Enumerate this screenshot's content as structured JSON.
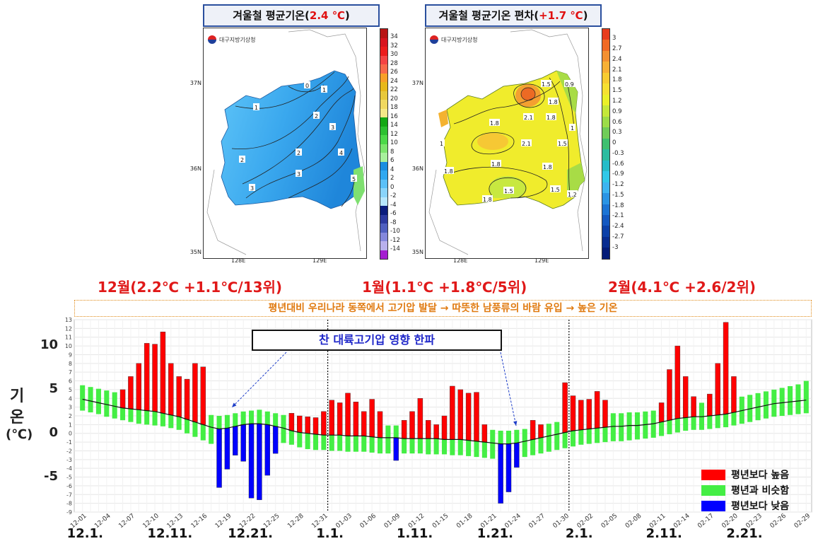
{
  "maps": {
    "left": {
      "title_prefix": "겨울철 평균기온(",
      "title_value": "2.4 ℃",
      "title_suffix": ")",
      "org": "대구지방기상청",
      "colorbar_labels": [
        "34",
        "32",
        "30",
        "28",
        "26",
        "24",
        "22",
        "20",
        "18",
        "16",
        "14",
        "12",
        "10",
        "8",
        "6",
        "4",
        "2",
        "0",
        "-2",
        "-4",
        "-6",
        "-8",
        "-10",
        "-12",
        "-14"
      ],
      "colorbar_colors": [
        "#b81414",
        "#d8141e",
        "#ec1c1c",
        "#f44444",
        "#f86a4a",
        "#f8a028",
        "#e8b81a",
        "#e8c83a",
        "#f0d860",
        "#f6e888",
        "#14a814",
        "#2cc030",
        "#4cd848",
        "#7ce46c",
        "#a8f09c",
        "#1b8ee0",
        "#31a8f0",
        "#5cc0f8",
        "#8ad4fa",
        "#b6e6fc",
        "#0a1c7c",
        "#2c3aa0",
        "#5060c0",
        "#8488dc",
        "#b8b0ec",
        "#a41ed0"
      ],
      "contour_labels": [
        "0",
        "1",
        "1",
        "2",
        "3",
        "2",
        "2",
        "4",
        "3",
        "5",
        "3"
      ],
      "lat_labels": [
        "37N",
        "36N",
        "35N"
      ],
      "lon_labels": [
        "128E",
        "129E"
      ]
    },
    "right": {
      "title_prefix": "겨울철 평균기온 편차(",
      "title_value": "+1.7 ℃",
      "title_suffix": ")",
      "org": "대구지방기상청",
      "colorbar_labels": [
        "3",
        "2.7",
        "2.4",
        "2.1",
        "1.8",
        "1.5",
        "1.2",
        "0.9",
        "0.6",
        "0.3",
        "0",
        "-0.3",
        "-0.6",
        "-0.9",
        "-1.2",
        "-1.5",
        "-1.8",
        "-2.1",
        "-2.4",
        "-2.7",
        "-3"
      ],
      "colorbar_colors": [
        "#e83c1c",
        "#f06a24",
        "#f49030",
        "#f8b034",
        "#f8cc30",
        "#f6e030",
        "#eaf028",
        "#c4e83a",
        "#9cdc48",
        "#70cc58",
        "#3ec070",
        "#2cbca0",
        "#26bcc8",
        "#30c8e8",
        "#3cb4f0",
        "#2a94e4",
        "#1c74d4",
        "#1458c0",
        "#0c40a8",
        "#082c90",
        "#041c78"
      ],
      "contour_labels": [
        "1.5",
        "0.9",
        "1.8",
        "2.1",
        "1.8",
        "1",
        "1.8",
        "2.1",
        "1.5",
        "1",
        "1.8",
        "1.8",
        "1.8",
        "1.5",
        "1.5",
        "1.2",
        "1.8"
      ],
      "lat_labels": [
        "37N",
        "36N",
        "35N"
      ],
      "lon_labels": [
        "128E",
        "129E"
      ]
    }
  },
  "month_titles": {
    "dec": "12월(2.2℃ +1.1℃/13위)",
    "jan": "1월(1.1℃ +1.8℃/5위)",
    "feb": "2월(4.1℃ +2.6/2위)"
  },
  "banner": "평년대비 우리나라 동쪽에서 고기압 발달 → 따뜻한 남풍류의 바람 유입 → 높은 기온",
  "callout": "찬 대륙고기압 영향 한파",
  "y_axis_label": {
    "line1": "기",
    "line2": "온",
    "line3": "(℃)"
  },
  "legend": {
    "above": "평년보다 높음",
    "similar": "평년과 비슷함",
    "below": "평년보다 낮음",
    "colors": {
      "above": "#ff0000",
      "similar": "#44ee44",
      "below": "#0000ff"
    }
  },
  "chart_data": {
    "type": "bar",
    "x_start": "12-01",
    "x_tick_labels": [
      "12-01",
      "12-04",
      "12-07",
      "12-10",
      "12-13",
      "12-16",
      "12-19",
      "12-22",
      "12-25",
      "12-28",
      "12-31",
      "01-03",
      "01-06",
      "01-09",
      "01-12",
      "01-15",
      "01-18",
      "01-21",
      "01-24",
      "01-27",
      "01-30",
      "02-02",
      "02-05",
      "02-08",
      "02-11",
      "02-14",
      "02-17",
      "02-20",
      "02-23",
      "02-26",
      "02-29"
    ],
    "x_major_labels": [
      "12.1.",
      "12.11.",
      "12.21.",
      "1.1.",
      "1.11.",
      "1.21.",
      "2.1.",
      "2.11.",
      "2.21."
    ],
    "y_major_ticks": [
      10,
      5,
      0,
      -5
    ],
    "y_minor_ticks": [
      13,
      12,
      11,
      10,
      9,
      8,
      7,
      6,
      5,
      4,
      3,
      2,
      1,
      0,
      -1,
      -2,
      -3,
      -4,
      -5,
      -6,
      -7,
      -8,
      -9
    ],
    "ylim": [
      -9,
      13
    ],
    "month_dividers": [
      "12-31",
      "01-31"
    ],
    "daily_temperature": [
      4.0,
      3.0,
      2.5,
      2.0,
      4.0,
      5.0,
      6.5,
      8.0,
      10.3,
      10.2,
      11.6,
      8.0,
      6.5,
      6.2,
      8.0,
      7.6,
      2.0,
      -6.2,
      -4.1,
      -2.5,
      -3.2,
      -7.4,
      -7.6,
      -4.8,
      -2.3,
      -1.0,
      2.3,
      2.0,
      1.9,
      1.8,
      2.5,
      3.8,
      3.5,
      4.6,
      3.6,
      2.5,
      3.9,
      2.5,
      -0.5,
      -3.1,
      1.5,
      2.5,
      4.0,
      1.5,
      1.0,
      2.0,
      5.4,
      5.0,
      4.6,
      4.7,
      1.0,
      -2.8,
      -8.0,
      -6.7,
      -3.9,
      -1.5,
      1.5,
      1.0,
      0.5,
      0.8,
      5.8,
      4.3,
      3.8,
      3.9,
      4.8,
      3.8,
      2.0,
      1.5,
      1.5,
      1.8,
      2.0,
      2.5,
      3.5,
      7.3,
      10.0,
      6.5,
      4.2,
      3.0,
      4.5,
      8.0,
      12.7,
      6.5,
      4.0,
      2.5,
      1.5,
      2.0,
      2.5,
      3.0,
      3.5,
      3.2,
      3.2
    ],
    "normal_mean": [
      3.9,
      3.7,
      3.5,
      3.3,
      3.1,
      2.9,
      2.8,
      2.7,
      2.6,
      2.5,
      2.3,
      2.1,
      1.9,
      1.6,
      1.3,
      1.0,
      0.7,
      0.5,
      0.6,
      0.8,
      1.0,
      1.1,
      1.1,
      1.0,
      0.8,
      0.6,
      0.3,
      0.1,
      0.0,
      -0.1,
      -0.2,
      -0.2,
      -0.2,
      -0.3,
      -0.3,
      -0.3,
      -0.4,
      -0.5,
      -0.5,
      -0.5,
      -0.6,
      -0.6,
      -0.6,
      -0.6,
      -0.6,
      -0.7,
      -0.7,
      -0.7,
      -0.8,
      -0.9,
      -1.0,
      -1.1,
      -1.2,
      -1.2,
      -1.1,
      -0.9,
      -0.7,
      -0.5,
      -0.3,
      -0.1,
      0.1,
      0.3,
      0.4,
      0.5,
      0.6,
      0.7,
      0.8,
      0.8,
      0.9,
      0.9,
      1.0,
      1.1,
      1.3,
      1.5,
      1.7,
      1.8,
      1.9,
      1.9,
      2.0,
      2.1,
      2.2,
      2.4,
      2.6,
      2.8,
      3.0,
      3.2,
      3.4,
      3.5,
      3.6,
      3.7,
      3.8
    ],
    "normal_band_top": [
      5.5,
      5.3,
      5.1,
      4.9,
      4.7,
      4.5,
      4.3,
      4.1,
      3.9,
      3.8,
      3.6,
      3.4,
      3.1,
      2.9,
      2.6,
      2.3,
      2.1,
      2.0,
      2.1,
      2.3,
      2.5,
      2.6,
      2.7,
      2.5,
      2.3,
      2.1,
      1.8,
      1.6,
      1.5,
      1.4,
      1.2,
      1.2,
      1.1,
      1.1,
      1.1,
      1.1,
      1.0,
      0.9,
      0.9,
      0.9,
      0.8,
      0.8,
      0.8,
      0.8,
      0.7,
      0.7,
      0.6,
      0.6,
      0.5,
      0.5,
      0.4,
      0.4,
      0.3,
      0.3,
      0.4,
      0.5,
      0.7,
      0.9,
      1.1,
      1.3,
      1.5,
      1.7,
      1.9,
      2.0,
      2.1,
      2.2,
      2.3,
      2.3,
      2.4,
      2.4,
      2.5,
      2.6,
      2.8,
      3.0,
      3.2,
      3.4,
      3.5,
      3.5,
      3.6,
      3.7,
      3.8,
      4.0,
      4.2,
      4.4,
      4.6,
      4.8,
      5.0,
      5.2,
      5.4,
      5.6,
      6.0
    ],
    "normal_band_bottom": [
      2.6,
      2.4,
      2.2,
      1.9,
      1.7,
      1.5,
      1.3,
      1.1,
      1.0,
      0.9,
      0.8,
      0.6,
      0.4,
      0.0,
      -0.4,
      -0.8,
      -1.2,
      -1.4,
      -1.3,
      -1.1,
      -0.9,
      -0.7,
      -0.6,
      -0.7,
      -0.9,
      -1.1,
      -1.3,
      -1.6,
      -1.8,
      -1.9,
      -1.9,
      -2.0,
      -2.0,
      -2.1,
      -2.1,
      -2.1,
      -2.2,
      -2.3,
      -2.3,
      -2.3,
      -2.3,
      -2.3,
      -2.3,
      -2.4,
      -2.4,
      -2.4,
      -2.5,
      -2.5,
      -2.6,
      -2.7,
      -2.8,
      -2.9,
      -3.0,
      -3.0,
      -2.8,
      -2.7,
      -2.5,
      -2.3,
      -2.1,
      -1.9,
      -1.7,
      -1.5,
      -1.3,
      -1.2,
      -1.1,
      -1.0,
      -0.9,
      -0.9,
      -0.8,
      -0.7,
      -0.6,
      -0.5,
      -0.3,
      -0.1,
      0.1,
      0.3,
      0.4,
      0.4,
      0.5,
      0.6,
      0.7,
      0.9,
      1.1,
      1.3,
      1.5,
      1.7,
      1.9,
      2.0,
      2.1,
      2.2,
      2.3
    ]
  }
}
